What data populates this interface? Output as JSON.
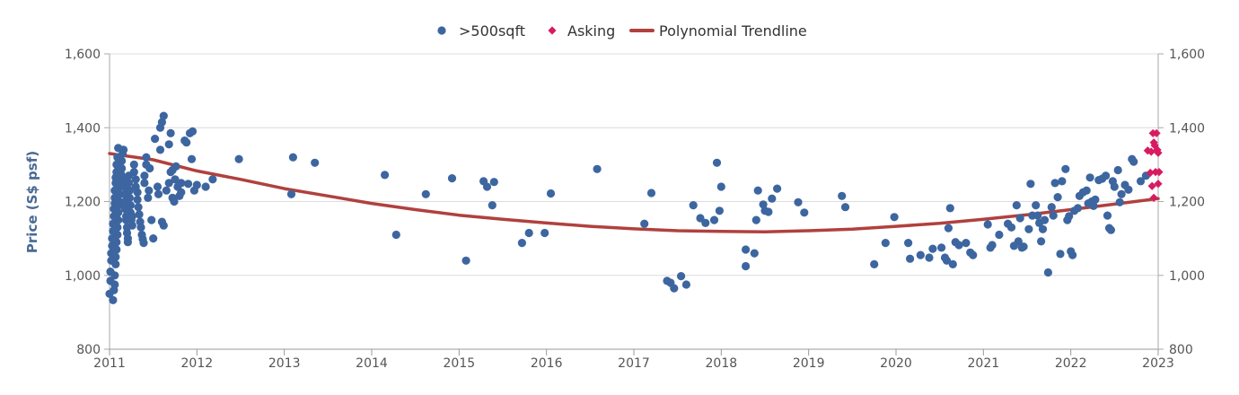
{
  "chart_data": {
    "type": "scatter",
    "title": "",
    "xlabel": "",
    "ylabel": "Price (S$ psf)",
    "xlim": [
      2011,
      2023
    ],
    "ylim": [
      800,
      1600
    ],
    "x_ticks": [
      "2011",
      "2012",
      "2013",
      "2014",
      "2015",
      "2016",
      "2017",
      "2018",
      "2019",
      "2020",
      "2021",
      "2022",
      "2023"
    ],
    "y_ticks": [
      "800",
      "1,000",
      "1,200",
      "1,400",
      "1,600"
    ],
    "y_ticks_right": [
      "800",
      "1,000",
      "1,200",
      "1,400",
      "1,600"
    ],
    "grid": "horizontal",
    "legend": "top-center",
    "colors": {
      "dots": "#3d66a0",
      "asking": "#d81b60",
      "trend": "#b0413e"
    },
    "series": [
      {
        "name": ">500sqft",
        "marker": "circle",
        "points": [
          [
            2011.0,
            950
          ],
          [
            2011.01,
            985
          ],
          [
            2011.01,
            1010
          ],
          [
            2011.02,
            1040
          ],
          [
            2011.02,
            1060
          ],
          [
            2011.03,
            1080
          ],
          [
            2011.03,
            1100
          ],
          [
            2011.04,
            1120
          ],
          [
            2011.04,
            1140
          ],
          [
            2011.05,
            1160
          ],
          [
            2011.05,
            1180
          ],
          [
            2011.06,
            1195
          ],
          [
            2011.06,
            1210
          ],
          [
            2011.06,
            1230
          ],
          [
            2011.07,
            1250
          ],
          [
            2011.07,
            1265
          ],
          [
            2011.08,
            1280
          ],
          [
            2011.08,
            1300
          ],
          [
            2011.09,
            1320
          ],
          [
            2011.1,
            1345
          ],
          [
            2011.04,
            933
          ],
          [
            2011.05,
            960
          ],
          [
            2011.06,
            975
          ],
          [
            2011.06,
            1000
          ],
          [
            2011.07,
            1030
          ],
          [
            2011.07,
            1050
          ],
          [
            2011.08,
            1070
          ],
          [
            2011.08,
            1090
          ],
          [
            2011.09,
            1110
          ],
          [
            2011.09,
            1130
          ],
          [
            2011.1,
            1150
          ],
          [
            2011.1,
            1170
          ],
          [
            2011.11,
            1190
          ],
          [
            2011.11,
            1200
          ],
          [
            2011.12,
            1220
          ],
          [
            2011.12,
            1240
          ],
          [
            2011.13,
            1260
          ],
          [
            2011.13,
            1275
          ],
          [
            2011.14,
            1290
          ],
          [
            2011.14,
            1310
          ],
          [
            2011.15,
            1330
          ],
          [
            2011.16,
            1340
          ],
          [
            2011.16,
            1260
          ],
          [
            2011.17,
            1240
          ],
          [
            2011.17,
            1220
          ],
          [
            2011.18,
            1200
          ],
          [
            2011.18,
            1180
          ],
          [
            2011.19,
            1160
          ],
          [
            2011.19,
            1150
          ],
          [
            2011.2,
            1130
          ],
          [
            2011.2,
            1115
          ],
          [
            2011.21,
            1100
          ],
          [
            2011.21,
            1090
          ],
          [
            2011.22,
            1250
          ],
          [
            2011.22,
            1270
          ],
          [
            2011.23,
            1230
          ],
          [
            2011.23,
            1210
          ],
          [
            2011.24,
            1190
          ],
          [
            2011.24,
            1170
          ],
          [
            2011.25,
            1150
          ],
          [
            2011.26,
            1135
          ],
          [
            2011.26,
            1160
          ],
          [
            2011.28,
            1300
          ],
          [
            2011.28,
            1280
          ],
          [
            2011.3,
            1260
          ],
          [
            2011.3,
            1240
          ],
          [
            2011.32,
            1225
          ],
          [
            2011.32,
            1205
          ],
          [
            2011.33,
            1185
          ],
          [
            2011.34,
            1165
          ],
          [
            2011.35,
            1145
          ],
          [
            2011.36,
            1130
          ],
          [
            2011.37,
            1110
          ],
          [
            2011.38,
            1098
          ],
          [
            2011.39,
            1088
          ],
          [
            2011.4,
            1270
          ],
          [
            2011.4,
            1250
          ],
          [
            2011.42,
            1300
          ],
          [
            2011.42,
            1320
          ],
          [
            2011.44,
            1210
          ],
          [
            2011.45,
            1230
          ],
          [
            2011.46,
            1290
          ],
          [
            2011.48,
            1150
          ],
          [
            2011.5,
            1100
          ],
          [
            2011.52,
            1370
          ],
          [
            2011.55,
            1240
          ],
          [
            2011.56,
            1220
          ],
          [
            2011.58,
            1340
          ],
          [
            2011.6,
            1145
          ],
          [
            2011.62,
            1135
          ],
          [
            2011.65,
            1230
          ],
          [
            2011.68,
            1250
          ],
          [
            2011.7,
            1280
          ],
          [
            2011.72,
            1210
          ],
          [
            2011.74,
            1200
          ],
          [
            2011.75,
            1260
          ],
          [
            2011.76,
            1295
          ],
          [
            2011.78,
            1240
          ],
          [
            2011.8,
            1215
          ],
          [
            2011.82,
            1225
          ],
          [
            2011.86,
            1365
          ],
          [
            2011.88,
            1360
          ],
          [
            2011.92,
            1385
          ],
          [
            2011.95,
            1390
          ],
          [
            2012.0,
            1245
          ],
          [
            2012.1,
            1240
          ],
          [
            2011.58,
            1400
          ],
          [
            2011.6,
            1415
          ],
          [
            2011.62,
            1432
          ],
          [
            2011.68,
            1355
          ],
          [
            2011.7,
            1385
          ],
          [
            2011.72,
            1285
          ],
          [
            2011.82,
            1250
          ],
          [
            2011.9,
            1248
          ],
          [
            2011.94,
            1315
          ],
          [
            2011.97,
            1230
          ],
          [
            2012.18,
            1260
          ],
          [
            2012.48,
            1315
          ],
          [
            2013.1,
            1320
          ],
          [
            2013.35,
            1305
          ],
          [
            2013.08,
            1220
          ],
          [
            2014.15,
            1272
          ],
          [
            2014.28,
            1110
          ],
          [
            2014.62,
            1220
          ],
          [
            2014.92,
            1263
          ],
          [
            2015.08,
            1040
          ],
          [
            2015.28,
            1255
          ],
          [
            2015.32,
            1240
          ],
          [
            2015.4,
            1253
          ],
          [
            2015.38,
            1190
          ],
          [
            2015.72,
            1088
          ],
          [
            2015.8,
            1115
          ],
          [
            2015.98,
            1115
          ],
          [
            2016.05,
            1222
          ],
          [
            2016.58,
            1288
          ],
          [
            2017.12,
            1140
          ],
          [
            2017.2,
            1223
          ],
          [
            2017.38,
            985
          ],
          [
            2017.42,
            980
          ],
          [
            2017.46,
            965
          ],
          [
            2017.54,
            998
          ],
          [
            2017.6,
            975
          ],
          [
            2017.68,
            1190
          ],
          [
            2017.76,
            1155
          ],
          [
            2017.82,
            1142
          ],
          [
            2017.92,
            1150
          ],
          [
            2017.98,
            1175
          ],
          [
            2017.95,
            1305
          ],
          [
            2018.0,
            1240
          ],
          [
            2018.28,
            1070
          ],
          [
            2018.28,
            1025
          ],
          [
            2018.38,
            1060
          ],
          [
            2018.4,
            1150
          ],
          [
            2018.42,
            1230
          ],
          [
            2018.48,
            1192
          ],
          [
            2018.5,
            1175
          ],
          [
            2018.54,
            1172
          ],
          [
            2018.58,
            1208
          ],
          [
            2018.64,
            1235
          ],
          [
            2018.88,
            1198
          ],
          [
            2018.95,
            1170
          ],
          [
            2019.38,
            1215
          ],
          [
            2019.42,
            1185
          ],
          [
            2019.75,
            1030
          ],
          [
            2019.88,
            1088
          ],
          [
            2019.98,
            1158
          ],
          [
            2020.14,
            1088
          ],
          [
            2020.16,
            1045
          ],
          [
            2020.28,
            1055
          ],
          [
            2020.38,
            1048
          ],
          [
            2020.42,
            1072
          ],
          [
            2020.52,
            1075
          ],
          [
            2020.56,
            1048
          ],
          [
            2020.58,
            1040
          ],
          [
            2020.6,
            1128
          ],
          [
            2020.62,
            1182
          ],
          [
            2020.65,
            1030
          ],
          [
            2020.68,
            1090
          ],
          [
            2020.72,
            1082
          ],
          [
            2020.8,
            1088
          ],
          [
            2020.85,
            1062
          ],
          [
            2020.88,
            1055
          ],
          [
            2021.05,
            1138
          ],
          [
            2021.08,
            1075
          ],
          [
            2021.1,
            1082
          ],
          [
            2021.18,
            1110
          ],
          [
            2021.28,
            1140
          ],
          [
            2021.32,
            1130
          ],
          [
            2021.35,
            1080
          ],
          [
            2021.38,
            1190
          ],
          [
            2021.4,
            1092
          ],
          [
            2021.42,
            1155
          ],
          [
            2021.44,
            1075
          ],
          [
            2021.46,
            1078
          ],
          [
            2021.52,
            1125
          ],
          [
            2021.54,
            1248
          ],
          [
            2021.56,
            1162
          ],
          [
            2021.6,
            1190
          ],
          [
            2021.62,
            1162
          ],
          [
            2021.64,
            1142
          ],
          [
            2021.66,
            1092
          ],
          [
            2021.68,
            1125
          ],
          [
            2021.7,
            1150
          ],
          [
            2021.74,
            1008
          ],
          [
            2021.78,
            1185
          ],
          [
            2021.8,
            1162
          ],
          [
            2021.82,
            1250
          ],
          [
            2021.85,
            1212
          ],
          [
            2021.88,
            1058
          ],
          [
            2021.9,
            1255
          ],
          [
            2021.94,
            1288
          ],
          [
            2021.96,
            1150
          ],
          [
            2021.98,
            1160
          ],
          [
            2022.0,
            1065
          ],
          [
            2022.02,
            1055
          ],
          [
            2022.04,
            1175
          ],
          [
            2022.08,
            1182
          ],
          [
            2022.1,
            1215
          ],
          [
            2022.14,
            1225
          ],
          [
            2022.18,
            1230
          ],
          [
            2022.2,
            1195
          ],
          [
            2022.22,
            1265
          ],
          [
            2022.24,
            1200
          ],
          [
            2022.26,
            1188
          ],
          [
            2022.28,
            1205
          ],
          [
            2022.32,
            1258
          ],
          [
            2022.36,
            1262
          ],
          [
            2022.4,
            1270
          ],
          [
            2022.42,
            1162
          ],
          [
            2022.44,
            1128
          ],
          [
            2022.46,
            1123
          ],
          [
            2022.48,
            1255
          ],
          [
            2022.5,
            1240
          ],
          [
            2022.54,
            1285
          ],
          [
            2022.56,
            1198
          ],
          [
            2022.58,
            1220
          ],
          [
            2022.62,
            1245
          ],
          [
            2022.66,
            1232
          ],
          [
            2022.7,
            1315
          ],
          [
            2022.72,
            1308
          ],
          [
            2022.8,
            1255
          ],
          [
            2022.86,
            1270
          ]
        ]
      },
      {
        "name": "Asking",
        "marker": "diamond",
        "points": [
          [
            2022.88,
            1338
          ],
          [
            2022.92,
            1335
          ],
          [
            2022.94,
            1385
          ],
          [
            2022.95,
            1360
          ],
          [
            2022.96,
            1352
          ],
          [
            2022.98,
            1385
          ],
          [
            2022.97,
            1280
          ],
          [
            2022.99,
            1340
          ],
          [
            2023.0,
            1332
          ],
          [
            2022.93,
            1242
          ],
          [
            2023.0,
            1248
          ],
          [
            2023.01,
            1280
          ],
          [
            2022.91,
            1278
          ],
          [
            2022.95,
            1210
          ]
        ]
      },
      {
        "name": "Polynomial Trendline",
        "marker": "line",
        "points": [
          [
            2011.0,
            1330
          ],
          [
            2011.5,
            1313
          ],
          [
            2012.0,
            1283
          ],
          [
            2012.5,
            1260
          ],
          [
            2013.0,
            1235
          ],
          [
            2013.5,
            1215
          ],
          [
            2014.0,
            1195
          ],
          [
            2014.5,
            1178
          ],
          [
            2015.0,
            1163
          ],
          [
            2015.5,
            1152
          ],
          [
            2016.0,
            1142
          ],
          [
            2016.5,
            1133
          ],
          [
            2017.0,
            1126
          ],
          [
            2017.5,
            1121
          ],
          [
            2018.0,
            1119
          ],
          [
            2018.5,
            1118
          ],
          [
            2019.0,
            1121
          ],
          [
            2019.5,
            1125
          ],
          [
            2020.0,
            1133
          ],
          [
            2020.5,
            1141
          ],
          [
            2021.0,
            1152
          ],
          [
            2021.5,
            1164
          ],
          [
            2022.0,
            1178
          ],
          [
            2022.5,
            1193
          ],
          [
            2023.0,
            1208
          ]
        ]
      }
    ]
  }
}
